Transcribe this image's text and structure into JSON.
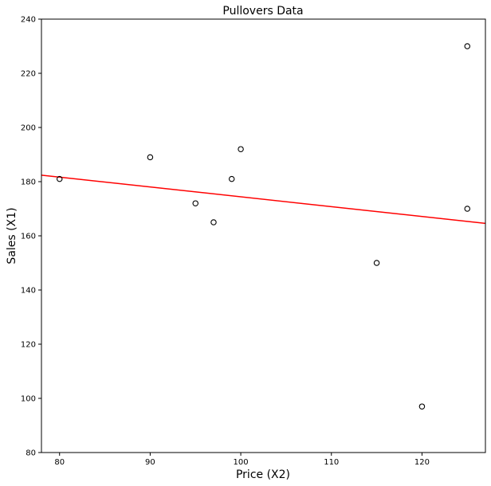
{
  "chart_data": {
    "type": "scatter",
    "title": "Pullovers Data",
    "xlabel": "Price (X2)",
    "ylabel": "Sales (X1)",
    "xlim": [
      78,
      127
    ],
    "ylim": [
      80,
      240
    ],
    "x_ticks": [
      80,
      90,
      100,
      110,
      120
    ],
    "y_ticks": [
      80,
      100,
      120,
      140,
      160,
      180,
      200,
      220,
      240
    ],
    "grid": false,
    "series": [
      {
        "marker": "open-circle",
        "color": "#000000",
        "points": [
          {
            "x": 80,
            "y": 181
          },
          {
            "x": 90,
            "y": 189
          },
          {
            "x": 95,
            "y": 172
          },
          {
            "x": 97,
            "y": 165
          },
          {
            "x": 99,
            "y": 181
          },
          {
            "x": 100,
            "y": 192
          },
          {
            "x": 115,
            "y": 150
          },
          {
            "x": 120,
            "y": 97
          },
          {
            "x": 125,
            "y": 230
          },
          {
            "x": 125,
            "y": 170
          }
        ]
      }
    ],
    "fit_line": {
      "color": "#ff0000",
      "points": [
        {
          "x": 78,
          "y": 182.4
        },
        {
          "x": 127,
          "y": 164.6
        }
      ]
    }
  }
}
